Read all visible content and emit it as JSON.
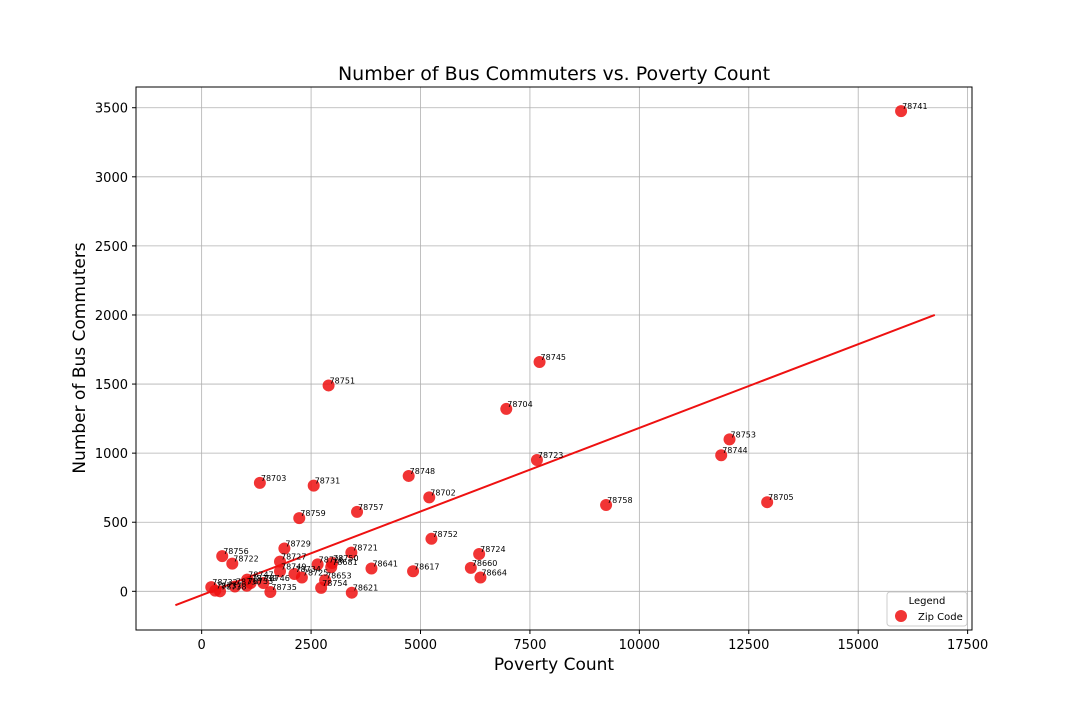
{
  "chart_data": {
    "type": "scatter",
    "title": "Number of Bus Commuters  vs. Poverty Count",
    "xlabel": "Poverty Count",
    "ylabel": "Number of Bus Commuters",
    "xlim": [
      -1500,
      17600
    ],
    "ylim": [
      -280,
      3650
    ],
    "xticks": [
      0,
      2500,
      5000,
      7500,
      10000,
      12500,
      15000,
      17500
    ],
    "yticks": [
      0,
      500,
      1000,
      1500,
      2000,
      2500,
      3000,
      3500
    ],
    "grid": true,
    "legend": {
      "title": "Legend",
      "entries": [
        "Zip Code"
      ],
      "position": "bottom-right"
    },
    "point_color": "#ee1111",
    "line_color": "#ee1111",
    "series": [
      {
        "name": "Zip Code",
        "points": [
          {
            "label": "78741",
            "x": 15980,
            "y": 3475
          },
          {
            "label": "78745",
            "x": 7720,
            "y": 1660
          },
          {
            "label": "78751",
            "x": 2900,
            "y": 1490
          },
          {
            "label": "78704",
            "x": 6960,
            "y": 1320
          },
          {
            "label": "78753",
            "x": 12060,
            "y": 1100
          },
          {
            "label": "78744",
            "x": 11870,
            "y": 985
          },
          {
            "label": "78723",
            "x": 7660,
            "y": 950
          },
          {
            "label": "78748",
            "x": 4730,
            "y": 835
          },
          {
            "label": "78703",
            "x": 1330,
            "y": 785
          },
          {
            "label": "78731",
            "x": 2560,
            "y": 765
          },
          {
            "label": "78702",
            "x": 5200,
            "y": 680
          },
          {
            "label": "78705",
            "x": 12920,
            "y": 645
          },
          {
            "label": "78758",
            "x": 9240,
            "y": 625
          },
          {
            "label": "78757",
            "x": 3550,
            "y": 575
          },
          {
            "label": "78759",
            "x": 2230,
            "y": 530
          },
          {
            "label": "78752",
            "x": 5250,
            "y": 380
          },
          {
            "label": "78729",
            "x": 1890,
            "y": 310
          },
          {
            "label": "78721",
            "x": 3420,
            "y": 280
          },
          {
            "label": "78724",
            "x": 6340,
            "y": 270
          },
          {
            "label": "78756",
            "x": 470,
            "y": 255
          },
          {
            "label": "78727",
            "x": 1790,
            "y": 215
          },
          {
            "label": "78722",
            "x": 700,
            "y": 200
          },
          {
            "label": "78726",
            "x": 2650,
            "y": 195
          },
          {
            "label": "78750",
            "x": 2980,
            "y": 205
          },
          {
            "label": "78681",
            "x": 2960,
            "y": 175
          },
          {
            "label": "78660",
            "x": 6150,
            "y": 170
          },
          {
            "label": "78641",
            "x": 3880,
            "y": 165
          },
          {
            "label": "78617",
            "x": 4830,
            "y": 145
          },
          {
            "label": "78749",
            "x": 1790,
            "y": 145
          },
          {
            "label": "78734",
            "x": 2120,
            "y": 125
          },
          {
            "label": "78664",
            "x": 6370,
            "y": 100
          },
          {
            "label": "78725",
            "x": 2290,
            "y": 100
          },
          {
            "label": "78653",
            "x": 2820,
            "y": 80
          },
          {
            "label": "78747",
            "x": 1040,
            "y": 85
          },
          {
            "label": "78746",
            "x": 1410,
            "y": 60
          },
          {
            "label": "78739",
            "x": 1120,
            "y": 60
          },
          {
            "label": "78733",
            "x": 1030,
            "y": 40
          },
          {
            "label": "78730",
            "x": 760,
            "y": 35
          },
          {
            "label": "78732",
            "x": 220,
            "y": 30
          },
          {
            "label": "78754",
            "x": 2730,
            "y": 25
          },
          {
            "label": "78737",
            "x": 310,
            "y": 5
          },
          {
            "label": "78738",
            "x": 420,
            "y": 0
          },
          {
            "label": "78735",
            "x": 1570,
            "y": -5
          },
          {
            "label": "78621",
            "x": 3430,
            "y": -10
          }
        ]
      }
    ],
    "regression_line": {
      "x": [
        -600,
        16750
      ],
      "y": [
        -100,
        2000
      ]
    }
  }
}
